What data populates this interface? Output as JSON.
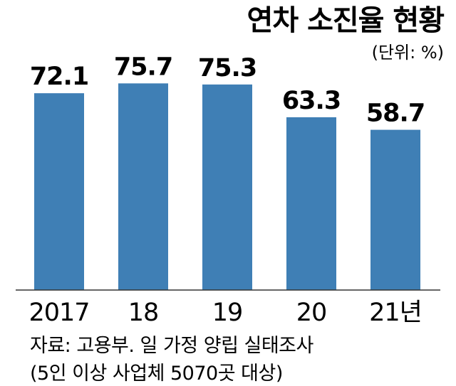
{
  "chart_data": {
    "type": "bar",
    "title": "연차 소진율 현황",
    "unit": "(단위: %)",
    "categories": [
      "2017",
      "18",
      "19",
      "20",
      "21년"
    ],
    "values": [
      72.1,
      75.7,
      75.3,
      63.3,
      58.7
    ],
    "value_labels": [
      "72.1",
      "75.7",
      "75.3",
      "63.3",
      "58.7"
    ],
    "xlabel": "",
    "ylabel": "",
    "grid": false,
    "bar_color": "#3f7fb5",
    "source_lines": [
      "자료: 고용부. 일 가정 양립 실태조사",
      "(5인 이상 사업체 5070곳 대상)"
    ]
  }
}
